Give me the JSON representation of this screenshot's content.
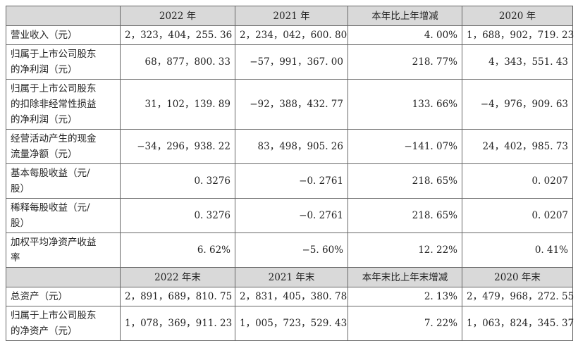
{
  "table": {
    "header": [
      "2022 年",
      "2021 年",
      "本年比上年增减",
      "2020 年"
    ],
    "rows": [
      [
        "营业收入（元）",
        "2，323，404，255. 36",
        "2，234，042，600. 80",
        "4. 00%",
        "1，688，902，719. 23"
      ],
      [
        "归属于上市公司股东\n的净利润（元）",
        "68，877，800. 33",
        "−57，991，367. 00",
        "218. 77%",
        "4，343，551. 43"
      ],
      [
        "归属于上市公司股东\n的扣除非经常性损益\n的净利润（元）",
        "31，102，139. 89",
        "−92，388，432. 77",
        "133. 66%",
        "−4，976，909. 63"
      ],
      [
        "经营活动产生的现金\n流量净额（元）",
        "−34，296，938. 22",
        "83，498，905. 26",
        "−141. 07%",
        "24，402，985. 73"
      ],
      [
        "基本每股收益（元/\n股）",
        "0. 3276",
        "−0. 2761",
        "218. 65%",
        "0. 0207"
      ],
      [
        "稀释每股收益（元/\n股）",
        "0. 3276",
        "−0. 2761",
        "218. 65%",
        "0. 0207"
      ],
      [
        "加权平均净资产收益\n率",
        "6. 62%",
        "−5. 60%",
        "12. 22%",
        "0. 41%"
      ]
    ],
    "header2": [
      "2022 年末",
      "2021 年末",
      "本年末比上年末增减",
      "2020 年末"
    ],
    "rows2": [
      [
        "总资产（元）",
        "2，891，689，810. 75",
        "2，831，405，380. 78",
        "2. 13%",
        "2，479，968，272. 55"
      ],
      [
        "归属于上市公司股东\n的净资产（元）",
        "1，078，369，911. 23",
        "1，005，723，529. 43",
        "7. 22%",
        "1，063，824，345. 37"
      ]
    ]
  }
}
